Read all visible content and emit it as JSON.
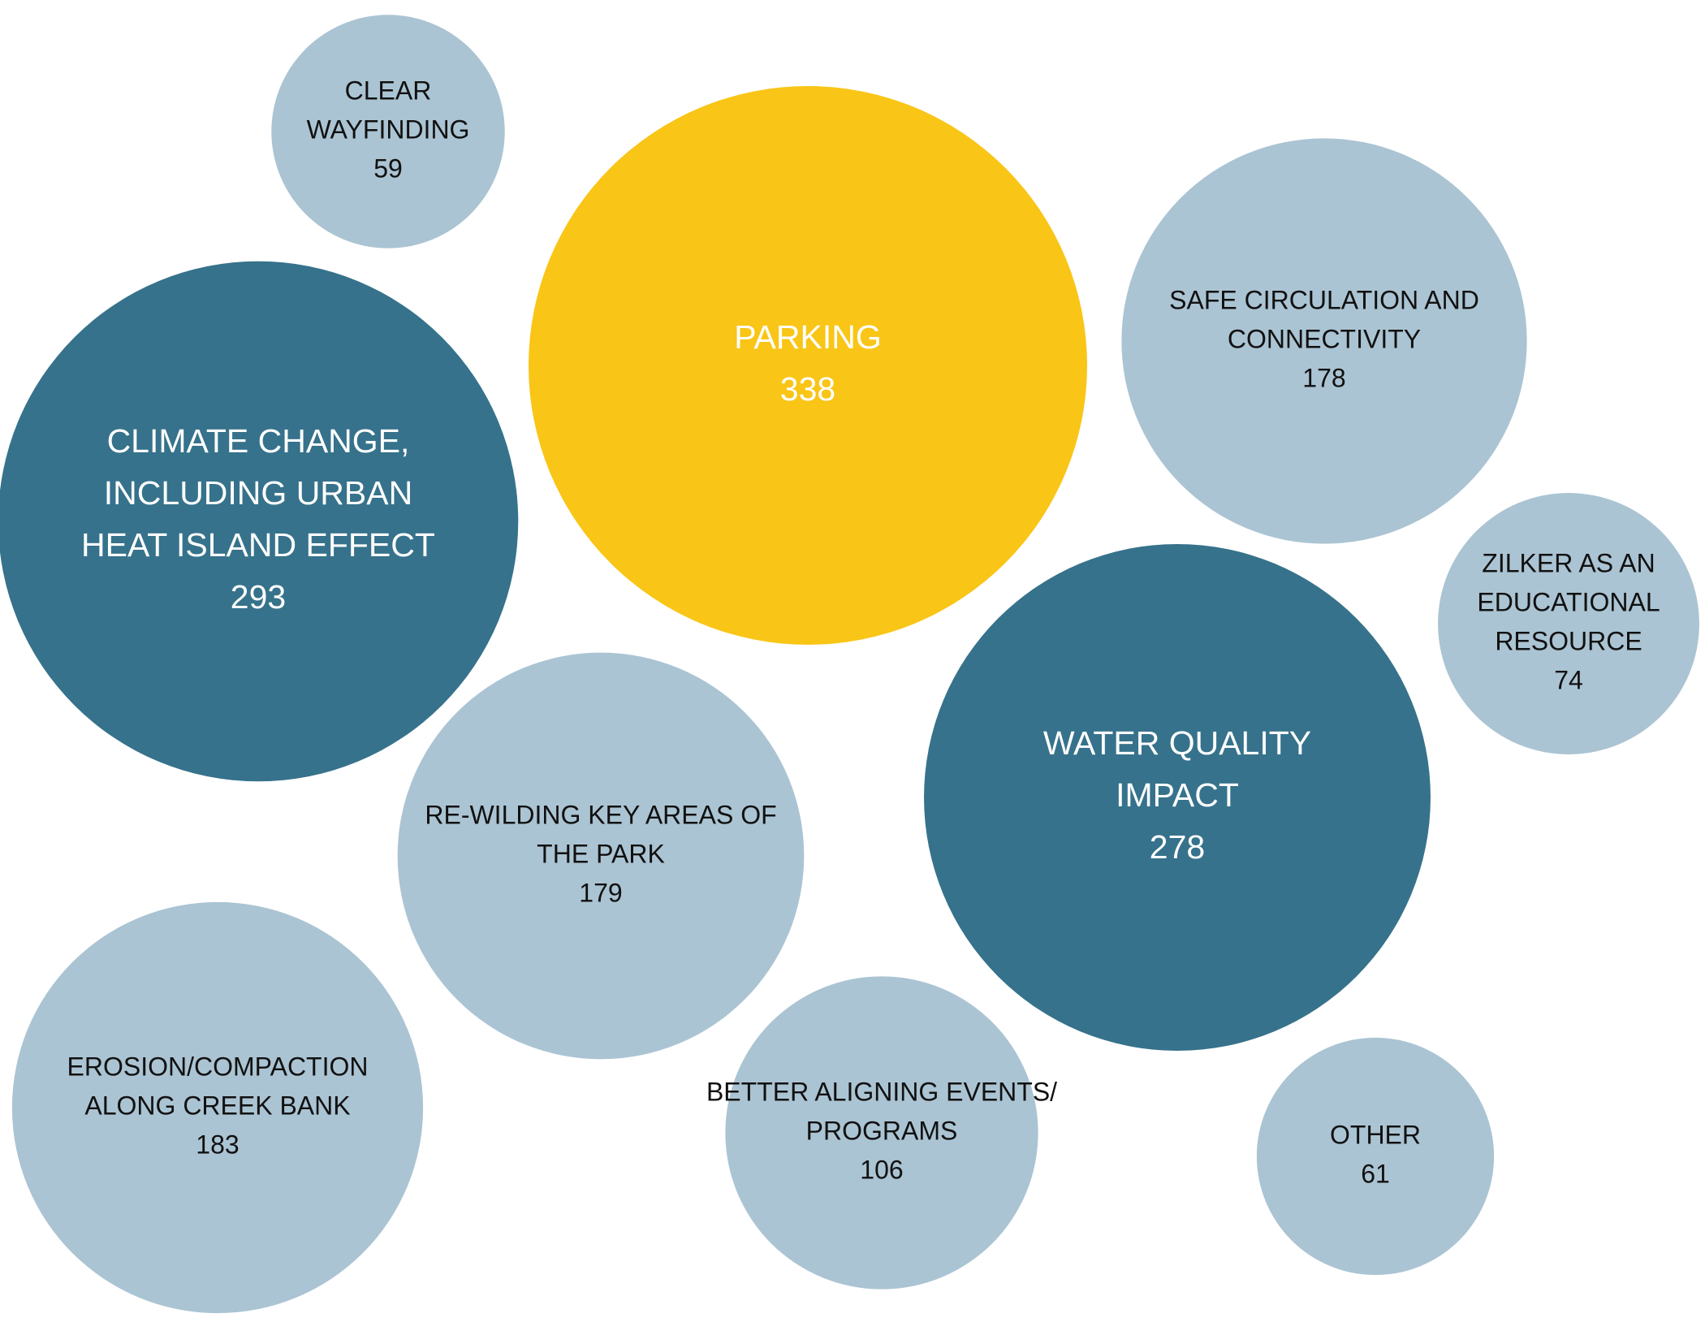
{
  "chart_data": {
    "type": "bubble",
    "colors": {
      "highlight": "#F9C516",
      "dark": "#36728B",
      "light": "#ABC4D3",
      "dark_text": "#FFFFFF",
      "light_text": "#111111"
    },
    "bubbles": [
      {
        "label_lines": [
          "CLEAR",
          "WAYFINDING"
        ],
        "value": 59,
        "value_label": "59",
        "shade": "light"
      },
      {
        "label_lines": [
          "PARKING"
        ],
        "value": 338,
        "value_label": "338",
        "shade": "highlight"
      },
      {
        "label_lines": [
          "SAFE CIRCULATION AND",
          "CONNECTIVITY"
        ],
        "value": 178,
        "value_label": "178",
        "shade": "light"
      },
      {
        "label_lines": [
          "CLIMATE CHANGE,",
          "INCLUDING URBAN",
          "HEAT ISLAND EFFECT"
        ],
        "value": 293,
        "value_label": "293",
        "shade": "dark"
      },
      {
        "label_lines": [
          "ZILKER AS AN",
          "EDUCATIONAL",
          "RESOURCE"
        ],
        "value": 74,
        "value_label": "74",
        "shade": "light"
      },
      {
        "label_lines": [
          "WATER QUALITY",
          "IMPACT"
        ],
        "value": 278,
        "value_label": "278",
        "shade": "dark"
      },
      {
        "label_lines": [
          "RE-WILDING KEY AREAS OF",
          "THE PARK"
        ],
        "value": 179,
        "value_label": "179",
        "shade": "light"
      },
      {
        "label_lines": [
          "EROSION/COMPACTION",
          "ALONG CREEK BANK"
        ],
        "value": 183,
        "value_label": "183",
        "shade": "light"
      },
      {
        "label_lines": [
          "BETTER ALIGNING EVENTS/",
          "PROGRAMS"
        ],
        "value": 106,
        "value_label": "106",
        "shade": "light"
      },
      {
        "label_lines": [
          "OTHER"
        ],
        "value": 61,
        "value_label": "61",
        "shade": "light"
      }
    ]
  }
}
